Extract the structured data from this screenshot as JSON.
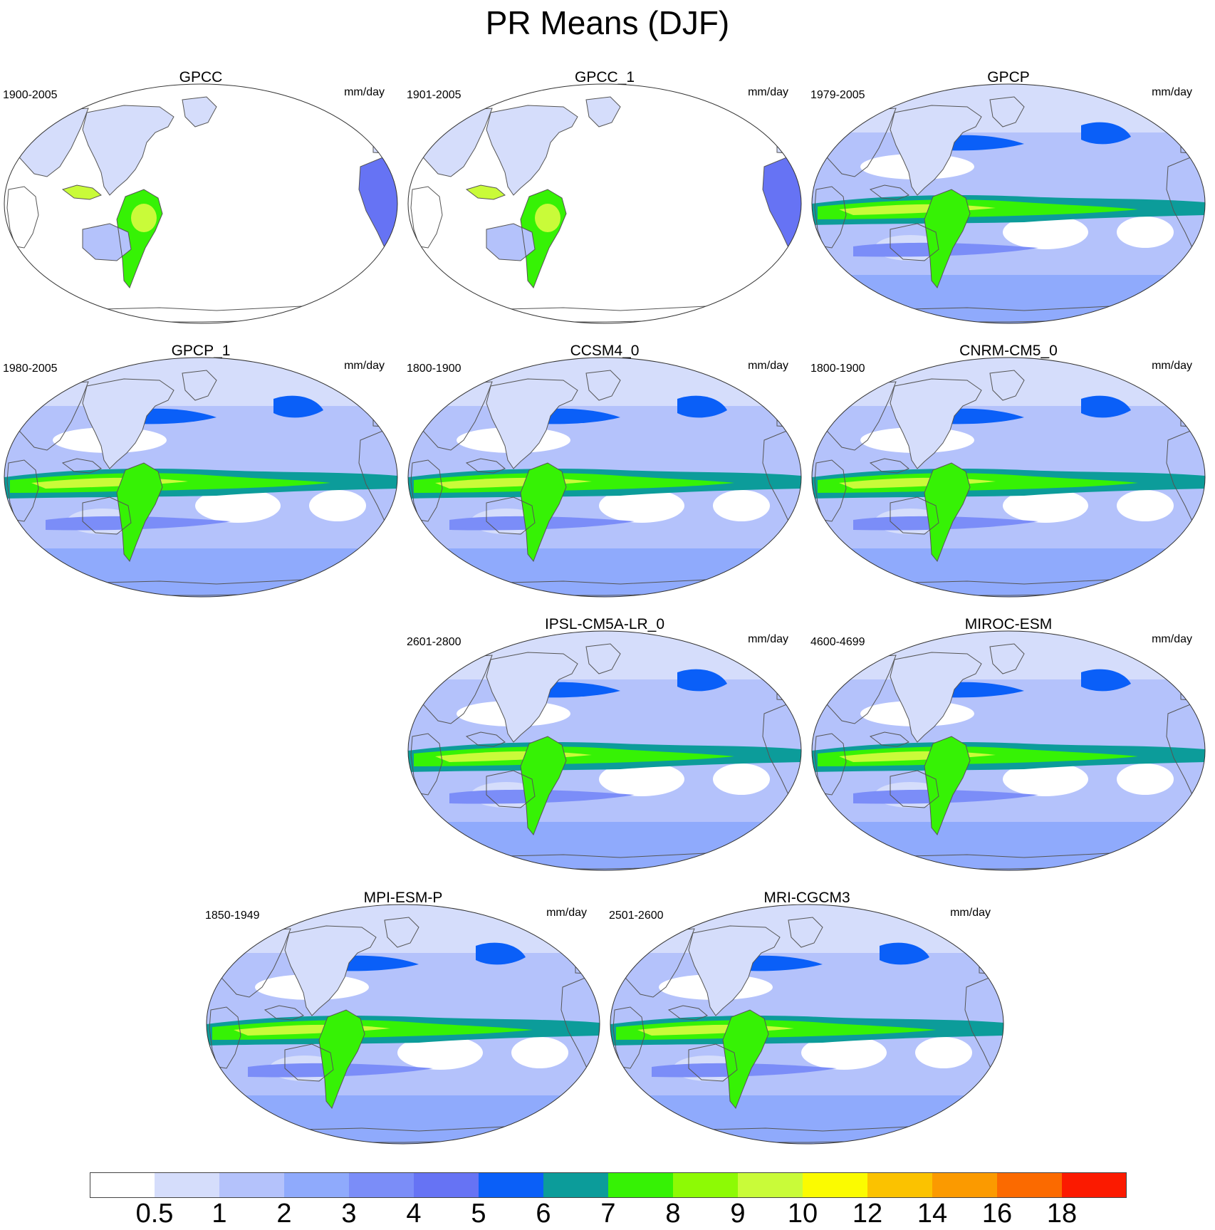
{
  "figure": {
    "title": "PR Means (DJF)"
  },
  "panels": [
    {
      "id": "gpcc",
      "name": "GPCC",
      "period": "1900-2005",
      "units": "mm/day",
      "coverage": "land"
    },
    {
      "id": "gpcc1",
      "name": "GPCC_1",
      "period": "1901-2005",
      "units": "mm/day",
      "coverage": "land"
    },
    {
      "id": "gpcp",
      "name": "GPCP",
      "period": "1979-2005",
      "units": "mm/day",
      "coverage": "global"
    },
    {
      "id": "gpcp1",
      "name": "GPCP_1",
      "period": "1980-2005",
      "units": "mm/day",
      "coverage": "global"
    },
    {
      "id": "ccsm4",
      "name": "CCSM4_0",
      "period": "1800-1900",
      "units": "mm/day",
      "coverage": "global"
    },
    {
      "id": "cnrm",
      "name": "CNRM-CM5_0",
      "period": "1800-1900",
      "units": "mm/day",
      "coverage": "global"
    },
    {
      "id": "ipsl",
      "name": "IPSL-CM5A-LR_0",
      "period": "2601-2800",
      "units": "mm/day",
      "coverage": "global"
    },
    {
      "id": "miroc",
      "name": "MIROC-ESM",
      "period": "4600-4699",
      "units": "mm/day",
      "coverage": "global"
    },
    {
      "id": "mpi",
      "name": "MPI-ESM-P",
      "period": "1850-1949",
      "units": "mm/day",
      "coverage": "global"
    },
    {
      "id": "mri",
      "name": "MRI-CGCM3",
      "period": "2501-2600",
      "units": "mm/day",
      "coverage": "global"
    }
  ],
  "colorbar": {
    "labels": [
      "0.5",
      "1",
      "2",
      "3",
      "4",
      "5",
      "6",
      "7",
      "8",
      "9",
      "10",
      "12",
      "14",
      "16",
      "18"
    ],
    "colors": [
      "#ffffff",
      "#d5ddfb",
      "#b4c2fb",
      "#8faafc",
      "#7b8df8",
      "#6673f4",
      "#0a5ff8",
      "#0c9c9a",
      "#36f205",
      "#8dfa05",
      "#c9fb39",
      "#fbfb00",
      "#fbc200",
      "#fb9a00",
      "#fb6a00",
      "#fb1a00"
    ]
  },
  "chart_data": {
    "type": "heatmap",
    "title": "PR Means (DJF)",
    "colorbar_levels": [
      0.5,
      1,
      2,
      3,
      4,
      5,
      6,
      7,
      8,
      9,
      10,
      12,
      14,
      16,
      18
    ],
    "units": "mm/day"
  }
}
